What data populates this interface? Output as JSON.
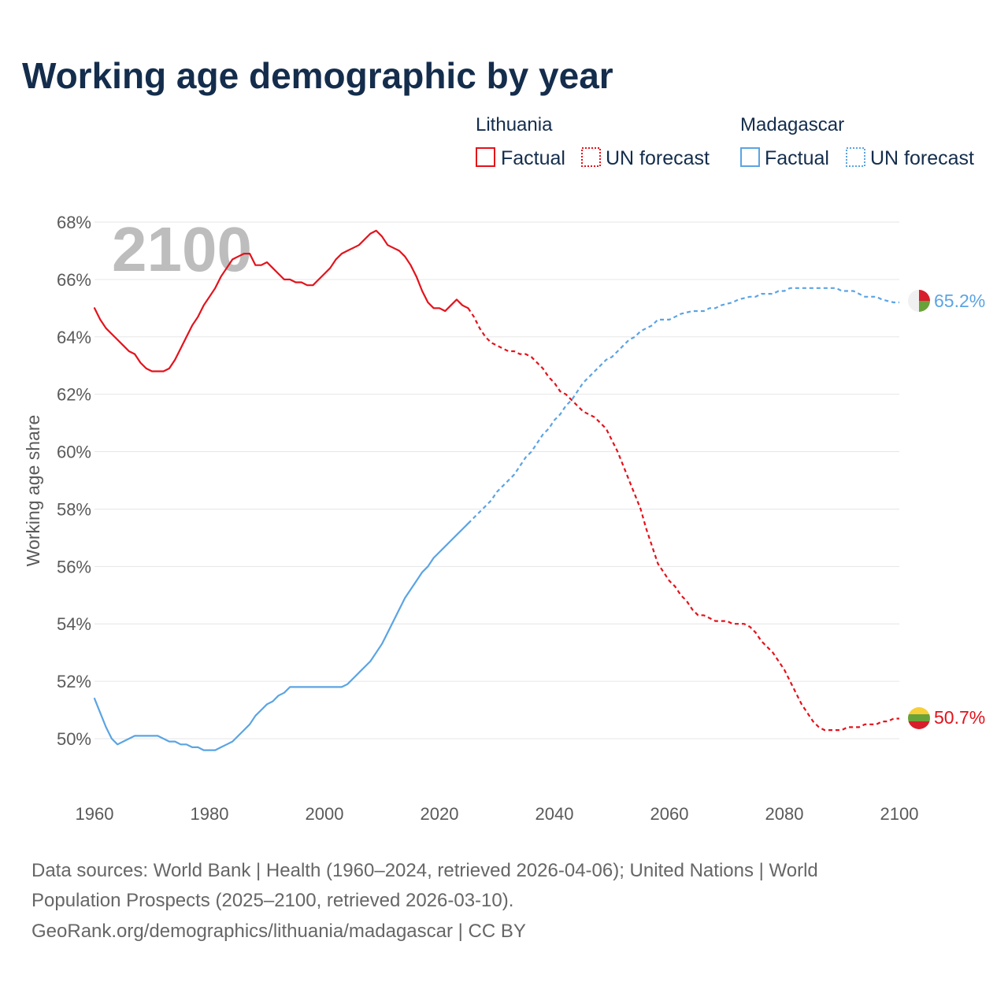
{
  "chart_data": {
    "type": "line",
    "title": "Working age demographic by year",
    "ylabel": "Working age share",
    "xlabel": "",
    "xlim": [
      1960,
      2100
    ],
    "ylim": [
      48.2,
      68.6
    ],
    "x_ticks": [
      "1960",
      "1980",
      "2000",
      "2020",
      "2040",
      "2060",
      "2080",
      "2100"
    ],
    "y_ticks": [
      "50%",
      "52%",
      "54%",
      "56%",
      "58%",
      "60%",
      "62%",
      "64%",
      "66%",
      "68%"
    ],
    "watermark_year": "2100",
    "legend": {
      "groups": [
        {
          "name": "Lithuania",
          "factual": "Factual",
          "forecast": "UN forecast",
          "color": "#e3121b"
        },
        {
          "name": "Madagascar",
          "factual": "Factual",
          "forecast": "UN forecast",
          "color": "#5ba4e3"
        }
      ]
    },
    "end_labels": {
      "lithuania": "50.7%",
      "madagascar": "65.2%"
    },
    "series": [
      {
        "name": "Lithuania",
        "color": "#e3121b",
        "factual": [
          [
            1960,
            65.0
          ],
          [
            1961,
            64.6
          ],
          [
            1962,
            64.3
          ],
          [
            1963,
            64.1
          ],
          [
            1964,
            63.9
          ],
          [
            1965,
            63.7
          ],
          [
            1966,
            63.5
          ],
          [
            1967,
            63.4
          ],
          [
            1968,
            63.1
          ],
          [
            1969,
            62.9
          ],
          [
            1970,
            62.8
          ],
          [
            1972,
            62.8
          ],
          [
            1973,
            62.9
          ],
          [
            1974,
            63.2
          ],
          [
            1975,
            63.6
          ],
          [
            1976,
            64.0
          ],
          [
            1977,
            64.4
          ],
          [
            1978,
            64.7
          ],
          [
            1979,
            65.1
          ],
          [
            1980,
            65.4
          ],
          [
            1981,
            65.7
          ],
          [
            1982,
            66.1
          ],
          [
            1983,
            66.4
          ],
          [
            1984,
            66.7
          ],
          [
            1985,
            66.8
          ],
          [
            1986,
            66.9
          ],
          [
            1987,
            66.9
          ],
          [
            1988,
            66.5
          ],
          [
            1989,
            66.5
          ],
          [
            1990,
            66.6
          ],
          [
            1991,
            66.4
          ],
          [
            1992,
            66.2
          ],
          [
            1993,
            66.0
          ],
          [
            1994,
            66.0
          ],
          [
            1995,
            65.9
          ],
          [
            1996,
            65.9
          ],
          [
            1997,
            65.8
          ],
          [
            1998,
            65.8
          ],
          [
            1999,
            66.0
          ],
          [
            2000,
            66.2
          ],
          [
            2001,
            66.4
          ],
          [
            2002,
            66.7
          ],
          [
            2003,
            66.9
          ],
          [
            2004,
            67.0
          ],
          [
            2005,
            67.1
          ],
          [
            2006,
            67.2
          ],
          [
            2007,
            67.4
          ],
          [
            2008,
            67.6
          ],
          [
            2009,
            67.7
          ],
          [
            2010,
            67.5
          ],
          [
            2011,
            67.2
          ],
          [
            2012,
            67.1
          ],
          [
            2013,
            67.0
          ],
          [
            2014,
            66.8
          ],
          [
            2015,
            66.5
          ],
          [
            2016,
            66.1
          ],
          [
            2017,
            65.6
          ],
          [
            2018,
            65.2
          ],
          [
            2019,
            65.0
          ],
          [
            2020,
            65.0
          ],
          [
            2021,
            64.9
          ],
          [
            2022,
            65.1
          ],
          [
            2023,
            65.3
          ],
          [
            2024,
            65.1
          ],
          [
            2025,
            65.0
          ]
        ],
        "forecast": [
          [
            2025,
            65.0
          ],
          [
            2026,
            64.7
          ],
          [
            2027,
            64.3
          ],
          [
            2028,
            64.0
          ],
          [
            2029,
            63.8
          ],
          [
            2030,
            63.7
          ],
          [
            2031,
            63.6
          ],
          [
            2032,
            63.5
          ],
          [
            2033,
            63.5
          ],
          [
            2034,
            63.4
          ],
          [
            2035,
            63.4
          ],
          [
            2036,
            63.3
          ],
          [
            2037,
            63.1
          ],
          [
            2038,
            62.9
          ],
          [
            2039,
            62.6
          ],
          [
            2040,
            62.4
          ],
          [
            2041,
            62.1
          ],
          [
            2042,
            62.0
          ],
          [
            2043,
            61.8
          ],
          [
            2044,
            61.6
          ],
          [
            2045,
            61.4
          ],
          [
            2046,
            61.3
          ],
          [
            2047,
            61.2
          ],
          [
            2048,
            61.0
          ],
          [
            2049,
            60.8
          ],
          [
            2050,
            60.4
          ],
          [
            2051,
            60.0
          ],
          [
            2052,
            59.5
          ],
          [
            2053,
            59.0
          ],
          [
            2054,
            58.5
          ],
          [
            2055,
            58.0
          ],
          [
            2056,
            57.3
          ],
          [
            2057,
            56.7
          ],
          [
            2058,
            56.1
          ],
          [
            2059,
            55.8
          ],
          [
            2060,
            55.5
          ],
          [
            2061,
            55.3
          ],
          [
            2062,
            55.0
          ],
          [
            2063,
            54.8
          ],
          [
            2064,
            54.5
          ],
          [
            2065,
            54.3
          ],
          [
            2066,
            54.3
          ],
          [
            2067,
            54.2
          ],
          [
            2068,
            54.1
          ],
          [
            2070,
            54.1
          ],
          [
            2071,
            54.0
          ],
          [
            2073,
            54.0
          ],
          [
            2074,
            53.9
          ],
          [
            2075,
            53.7
          ],
          [
            2076,
            53.4
          ],
          [
            2077,
            53.2
          ],
          [
            2078,
            53.0
          ],
          [
            2079,
            52.7
          ],
          [
            2080,
            52.4
          ],
          [
            2081,
            52.0
          ],
          [
            2082,
            51.6
          ],
          [
            2083,
            51.2
          ],
          [
            2084,
            50.9
          ],
          [
            2085,
            50.6
          ],
          [
            2086,
            50.4
          ],
          [
            2087,
            50.3
          ],
          [
            2090,
            50.3
          ],
          [
            2091,
            50.4
          ],
          [
            2093,
            50.4
          ],
          [
            2094,
            50.5
          ],
          [
            2096,
            50.5
          ],
          [
            2097,
            50.6
          ],
          [
            2098,
            50.6
          ],
          [
            2099,
            50.7
          ],
          [
            2100,
            50.7
          ]
        ]
      },
      {
        "name": "Madagascar",
        "color": "#5ba4e3",
        "factual": [
          [
            1960,
            51.4
          ],
          [
            1961,
            50.9
          ],
          [
            1962,
            50.4
          ],
          [
            1963,
            50.0
          ],
          [
            1964,
            49.8
          ],
          [
            1965,
            49.9
          ],
          [
            1966,
            50.0
          ],
          [
            1967,
            50.1
          ],
          [
            1971,
            50.1
          ],
          [
            1972,
            50.0
          ],
          [
            1973,
            49.9
          ],
          [
            1974,
            49.9
          ],
          [
            1975,
            49.8
          ],
          [
            1976,
            49.8
          ],
          [
            1977,
            49.7
          ],
          [
            1978,
            49.7
          ],
          [
            1979,
            49.6
          ],
          [
            1981,
            49.6
          ],
          [
            1982,
            49.7
          ],
          [
            1983,
            49.8
          ],
          [
            1984,
            49.9
          ],
          [
            1985,
            50.1
          ],
          [
            1986,
            50.3
          ],
          [
            1987,
            50.5
          ],
          [
            1988,
            50.8
          ],
          [
            1989,
            51.0
          ],
          [
            1990,
            51.2
          ],
          [
            1991,
            51.3
          ],
          [
            1992,
            51.5
          ],
          [
            1993,
            51.6
          ],
          [
            1994,
            51.8
          ],
          [
            2003,
            51.8
          ],
          [
            2004,
            51.9
          ],
          [
            2005,
            52.1
          ],
          [
            2006,
            52.3
          ],
          [
            2007,
            52.5
          ],
          [
            2008,
            52.7
          ],
          [
            2009,
            53.0
          ],
          [
            2010,
            53.3
          ],
          [
            2011,
            53.7
          ],
          [
            2012,
            54.1
          ],
          [
            2013,
            54.5
          ],
          [
            2014,
            54.9
          ],
          [
            2015,
            55.2
          ],
          [
            2016,
            55.5
          ],
          [
            2017,
            55.8
          ],
          [
            2018,
            56.0
          ],
          [
            2019,
            56.3
          ],
          [
            2020,
            56.5
          ],
          [
            2021,
            56.7
          ],
          [
            2022,
            56.9
          ],
          [
            2023,
            57.1
          ],
          [
            2024,
            57.3
          ],
          [
            2025,
            57.5
          ]
        ],
        "forecast": [
          [
            2025,
            57.5
          ],
          [
            2026,
            57.7
          ],
          [
            2027,
            57.9
          ],
          [
            2028,
            58.1
          ],
          [
            2029,
            58.3
          ],
          [
            2030,
            58.6
          ],
          [
            2031,
            58.8
          ],
          [
            2032,
            59.0
          ],
          [
            2033,
            59.2
          ],
          [
            2034,
            59.5
          ],
          [
            2035,
            59.8
          ],
          [
            2036,
            60.0
          ],
          [
            2037,
            60.3
          ],
          [
            2038,
            60.6
          ],
          [
            2039,
            60.8
          ],
          [
            2040,
            61.1
          ],
          [
            2041,
            61.3
          ],
          [
            2042,
            61.6
          ],
          [
            2043,
            61.8
          ],
          [
            2044,
            62.1
          ],
          [
            2045,
            62.4
          ],
          [
            2046,
            62.6
          ],
          [
            2047,
            62.8
          ],
          [
            2048,
            63.0
          ],
          [
            2049,
            63.2
          ],
          [
            2050,
            63.3
          ],
          [
            2051,
            63.5
          ],
          [
            2052,
            63.7
          ],
          [
            2053,
            63.9
          ],
          [
            2054,
            64.0
          ],
          [
            2055,
            64.2
          ],
          [
            2056,
            64.3
          ],
          [
            2057,
            64.4
          ],
          [
            2058,
            64.6
          ],
          [
            2060,
            64.6
          ],
          [
            2061,
            64.7
          ],
          [
            2062,
            64.8
          ],
          [
            2064,
            64.9
          ],
          [
            2066,
            64.9
          ],
          [
            2067,
            65.0
          ],
          [
            2068,
            65.0
          ],
          [
            2069,
            65.1
          ],
          [
            2071,
            65.2
          ],
          [
            2072,
            65.3
          ],
          [
            2074,
            65.4
          ],
          [
            2075,
            65.4
          ],
          [
            2076,
            65.5
          ],
          [
            2078,
            65.5
          ],
          [
            2079,
            65.6
          ],
          [
            2080,
            65.6
          ],
          [
            2081,
            65.7
          ],
          [
            2089,
            65.7
          ],
          [
            2090,
            65.6
          ],
          [
            2092,
            65.6
          ],
          [
            2093,
            65.5
          ],
          [
            2094,
            65.4
          ],
          [
            2096,
            65.4
          ],
          [
            2097,
            65.3
          ],
          [
            2099,
            65.2
          ],
          [
            2100,
            65.2
          ]
        ]
      }
    ]
  },
  "source": {
    "line1": "Data sources: World Bank | Health (1960–2024, retrieved 2026-04-06); United Nations | World",
    "line2": "Population Prospects (2025–2100, retrieved 2026-03-10).",
    "line3": "GeoRank.org/demographics/lithuania/madagascar | CC BY"
  }
}
